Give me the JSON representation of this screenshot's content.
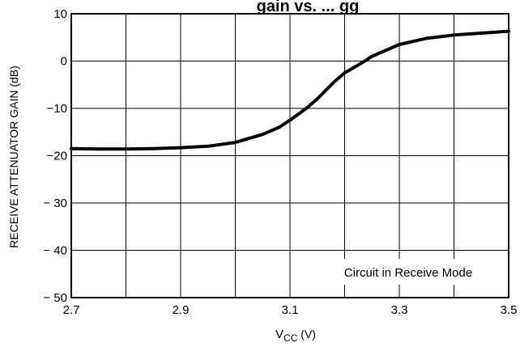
{
  "chart_data": {
    "type": "line",
    "title_partial": "gain vs. ... gg",
    "xlabel_main": "V",
    "xlabel_sub": "CC",
    "xlabel_unit": " (V)",
    "ylabel": "RECEIVE ATTENUATOR GAIN (dB)",
    "xlim": [
      2.7,
      3.5
    ],
    "ylim": [
      -50,
      10
    ],
    "x_ticks": [
      2.7,
      2.8,
      2.9,
      3.0,
      3.1,
      3.2,
      3.3,
      3.4,
      3.5
    ],
    "x_tick_labels": [
      "2.7",
      "",
      "2.9",
      "",
      "3.1",
      "",
      "3.3",
      "",
      "3.5"
    ],
    "y_ticks": [
      10,
      0,
      -10,
      -20,
      -30,
      -40,
      -50
    ],
    "y_tick_labels": [
      "10",
      "0",
      "−10",
      "−20",
      "− 30",
      "− 40",
      "− 50"
    ],
    "grid": true,
    "annotation": "Circuit in Receive Mode",
    "series": [
      {
        "points": [
          [
            2.7,
            -18.5
          ],
          [
            2.75,
            -18.6
          ],
          [
            2.8,
            -18.6
          ],
          [
            2.85,
            -18.5
          ],
          [
            2.9,
            -18.3
          ],
          [
            2.95,
            -18.0
          ],
          [
            3.0,
            -17.2
          ],
          [
            3.05,
            -15.5
          ],
          [
            3.08,
            -14.0
          ],
          [
            3.1,
            -12.5
          ],
          [
            3.13,
            -10.0
          ],
          [
            3.15,
            -8.0
          ],
          [
            3.18,
            -4.5
          ],
          [
            3.2,
            -2.5
          ],
          [
            3.23,
            -0.5
          ],
          [
            3.25,
            1.0
          ],
          [
            3.3,
            3.5
          ],
          [
            3.35,
            4.8
          ],
          [
            3.4,
            5.5
          ],
          [
            3.45,
            5.9
          ],
          [
            3.5,
            6.3
          ]
        ]
      }
    ]
  }
}
